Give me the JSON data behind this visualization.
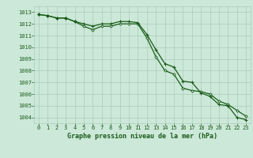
{
  "line1_x": [
    0,
    1,
    2,
    3,
    4,
    5,
    6,
    7,
    8,
    9,
    10,
    11,
    12,
    13,
    14,
    15,
    16,
    17,
    18,
    19,
    20,
    21,
    22,
    23
  ],
  "line1_y": [
    1012.8,
    1012.7,
    1012.5,
    1012.5,
    1012.2,
    1012.0,
    1011.8,
    1012.0,
    1012.0,
    1012.2,
    1012.2,
    1012.1,
    1011.1,
    1009.8,
    1008.6,
    1008.3,
    1007.1,
    1007.0,
    1006.1,
    1005.8,
    1005.1,
    1005.0,
    1004.0,
    1003.8
  ],
  "line2_x": [
    0,
    1,
    2,
    3,
    4,
    5,
    6,
    7,
    8,
    9,
    10,
    11,
    12,
    13,
    14,
    15,
    16,
    17,
    18,
    19,
    20,
    21,
    22,
    23
  ],
  "line2_y": [
    1012.8,
    1012.7,
    1012.5,
    1012.5,
    1012.2,
    1011.8,
    1011.5,
    1011.8,
    1011.8,
    1012.0,
    1012.0,
    1012.0,
    1010.8,
    1009.2,
    1008.0,
    1007.7,
    1006.5,
    1006.3,
    1006.2,
    1006.0,
    1005.4,
    1005.1,
    1004.6,
    1004.1
  ],
  "line_color": "#1a5c1a",
  "bg_color": "#cce8d8",
  "grid_color": "#aaccbb",
  "xlabel": "Graphe pression niveau de la mer (hPa)",
  "ylim": [
    1003.5,
    1013.5
  ],
  "xlim": [
    -0.5,
    23.5
  ],
  "yticks": [
    1004,
    1005,
    1006,
    1007,
    1008,
    1009,
    1010,
    1011,
    1012,
    1013
  ],
  "xticks": [
    0,
    1,
    2,
    3,
    4,
    5,
    6,
    7,
    8,
    9,
    10,
    11,
    12,
    13,
    14,
    15,
    16,
    17,
    18,
    19,
    20,
    21,
    22,
    23
  ],
  "marker1": "+",
  "marker2": "D",
  "markersize1": 3.0,
  "markersize2": 1.8,
  "linewidth": 0.9,
  "label_fontsize": 6.0,
  "tick_fontsize": 5.0
}
